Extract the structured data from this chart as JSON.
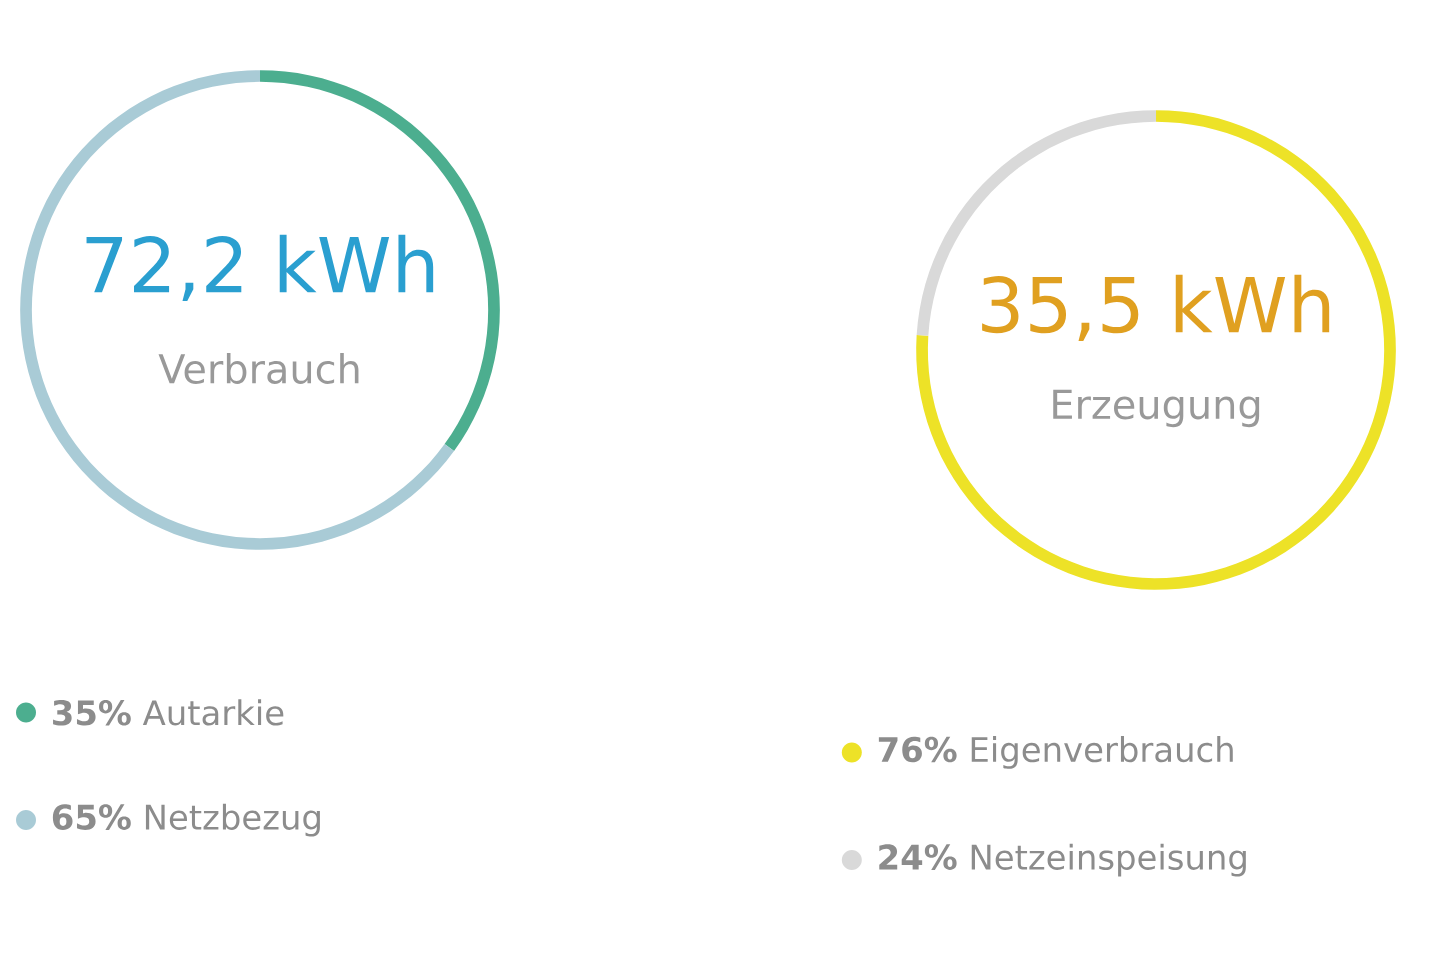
{
  "chart_data": [
    {
      "type": "donut",
      "title": "72,2 kWh",
      "subtitle": "Verbrauch",
      "categories": [
        "**35%** Autarkie",
        "**65%** Netzbezug"
      ],
      "values": [
        35,
        65
      ],
      "colors": [
        "#4cae8f",
        "#a9cbd6"
      ],
      "legend": "bottom"
    },
    {
      "type": "donut",
      "title": "35,5 kWh",
      "subtitle": "Erzeugung",
      "categories": [
        "**76%** Eigenverbrauch",
        "**24%** Netzeinspeisung"
      ],
      "values": [
        76,
        24
      ],
      "colors": [
        "#ede227",
        "#d9d9d9"
      ],
      "legend": "bottom"
    }
  ]
}
